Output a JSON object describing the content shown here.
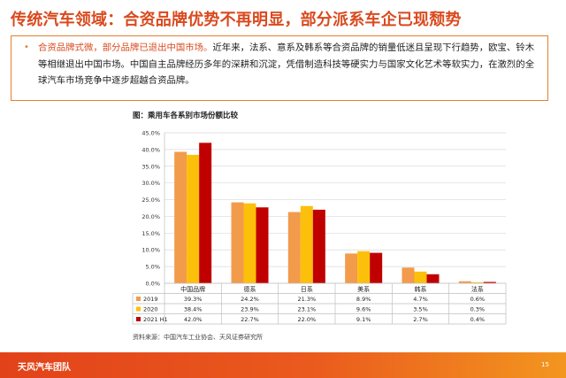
{
  "slide": {
    "title": "传统汽车领域：合资品牌优势不再明显，部分派系车企已现颓势",
    "bullet_highlight": "合资品牌式微，部分品牌已退出中国市场。",
    "bullet_text": "近年来，法系、意系及韩系等合资品牌的销量低迷且呈现下行趋势，欧宝、铃木等相继退出中国市场。中国自主品牌经历多年的深耕和沉淀，凭借制造科技等硬实力与国家文化艺术等软实力，在激烈的全球汽车市场竞争中逐步超越合资品牌。",
    "chart_caption": "图：乘用车各系别市场份额比较",
    "source": "资料来源：中国汽车工业协会、天风证券研究所",
    "footer": "天风汽车团队",
    "page_number": "15"
  },
  "chart_data": {
    "type": "bar",
    "categories": [
      "中国品牌",
      "德系",
      "日系",
      "美系",
      "韩系",
      "法系"
    ],
    "series": [
      {
        "name": "2019",
        "color": "#f29b4b",
        "values": [
          39.3,
          24.2,
          21.3,
          8.9,
          4.7,
          0.6
        ],
        "labels": [
          "39.3%",
          "24.2%",
          "21.3%",
          "8.9%",
          "4.7%",
          "0.6%"
        ]
      },
      {
        "name": "2020",
        "color": "#fcc00a",
        "values": [
          38.4,
          23.9,
          23.1,
          9.6,
          3.5,
          0.3
        ],
        "labels": [
          "38.4%",
          "23.9%",
          "23.1%",
          "9.6%",
          "3.5%",
          "0.3%"
        ]
      },
      {
        "name": "2021 H1",
        "color": "#c00000",
        "values": [
          42.0,
          22.7,
          22.0,
          9.1,
          2.7,
          0.4
        ],
        "labels": [
          "42.0%",
          "22.7%",
          "22.0%",
          "9.1%",
          "2.7%",
          "0.4%"
        ]
      }
    ],
    "ylim": [
      0,
      45
    ],
    "yticks": [
      "0.0%",
      "5.0%",
      "10.0%",
      "15.0%",
      "20.0%",
      "25.0%",
      "30.0%",
      "35.0%",
      "40.0%",
      "45.0%"
    ],
    "grid": true,
    "legend": "data table below chart"
  }
}
